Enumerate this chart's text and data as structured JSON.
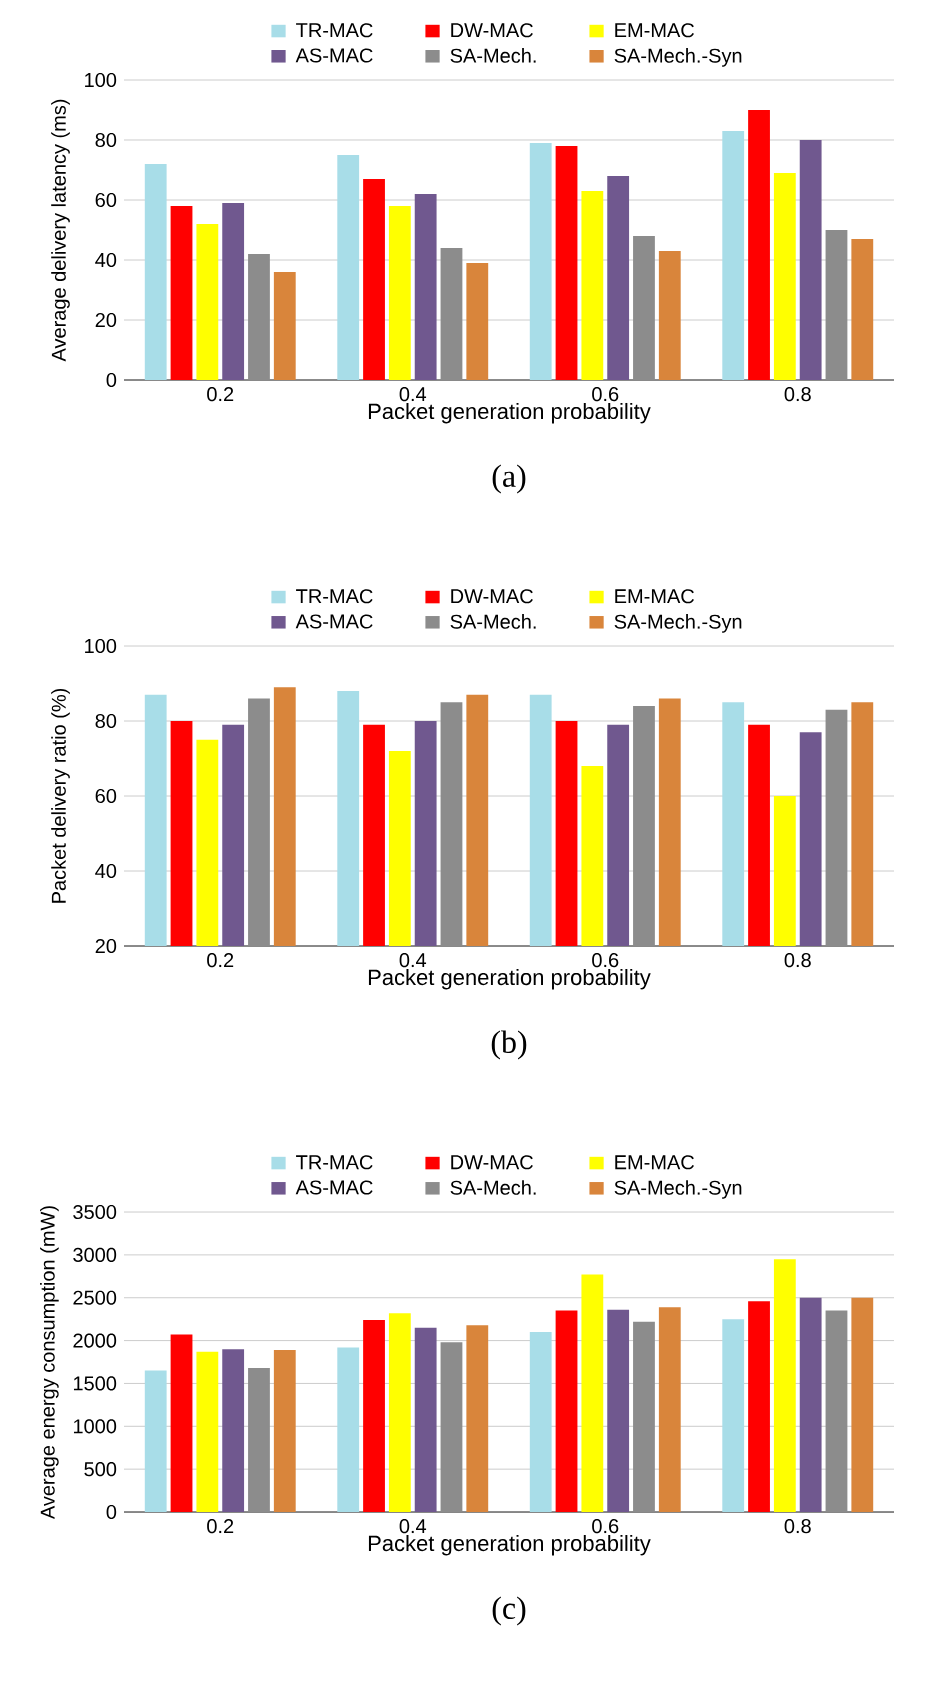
{
  "chart_data": [
    {
      "type": "bar",
      "ylabel": "Average delivery latency (ms)",
      "xlabel": "Packet generation probability",
      "categories": [
        "0.2",
        "0.4",
        "0.6",
        "0.8"
      ],
      "ylim": [
        0,
        100
      ],
      "yticks": [
        0,
        20,
        40,
        60,
        80,
        100
      ],
      "grid": "y",
      "legend": "top",
      "annotations": [
        "(a)"
      ],
      "series": [
        {
          "name": "TR-MAC",
          "color": "#a8dde8",
          "values": [
            72,
            75,
            79,
            83
          ]
        },
        {
          "name": "DW-MAC",
          "color": "#ff0000",
          "values": [
            58,
            67,
            78,
            90
          ]
        },
        {
          "name": "EM-MAC",
          "color": "#ffff00",
          "values": [
            52,
            58,
            63,
            69
          ]
        },
        {
          "name": "AS-MAC",
          "color": "#70588f",
          "values": [
            59,
            62,
            68,
            80
          ]
        },
        {
          "name": "SA-Mech.",
          "color": "#8c8c8c",
          "values": [
            42,
            44,
            48,
            50
          ]
        },
        {
          "name": "SA-Mech.-Syn",
          "color": "#d9853b",
          "values": [
            36,
            39,
            43,
            47
          ]
        }
      ]
    },
    {
      "type": "bar",
      "ylabel": "Packet delivery ratio (%)",
      "xlabel": "Packet generation probability",
      "categories": [
        "0.2",
        "0.4",
        "0.6",
        "0.8"
      ],
      "ylim": [
        20,
        100
      ],
      "yticks": [
        20,
        40,
        60,
        80,
        100
      ],
      "grid": "y",
      "legend": "top",
      "annotations": [
        "(b)"
      ],
      "series": [
        {
          "name": "TR-MAC",
          "color": "#a8dde8",
          "values": [
            87,
            88,
            87,
            85
          ]
        },
        {
          "name": "DW-MAC",
          "color": "#ff0000",
          "values": [
            80,
            79,
            80,
            79
          ]
        },
        {
          "name": "EM-MAC",
          "color": "#ffff00",
          "values": [
            75,
            72,
            68,
            60
          ]
        },
        {
          "name": "AS-MAC",
          "color": "#70588f",
          "values": [
            79,
            80,
            79,
            77
          ]
        },
        {
          "name": "SA-Mech.",
          "color": "#8c8c8c",
          "values": [
            86,
            85,
            84,
            83
          ]
        },
        {
          "name": "SA-Mech.-Syn",
          "color": "#d9853b",
          "values": [
            89,
            87,
            86,
            85
          ]
        }
      ]
    },
    {
      "type": "bar",
      "ylabel": "Average energy consumption (mW)",
      "xlabel": "Packet generation probability",
      "categories": [
        "0.2",
        "0.4",
        "0.6",
        "0.8"
      ],
      "ylim": [
        0,
        3500
      ],
      "yticks": [
        0,
        500,
        1000,
        1500,
        2000,
        2500,
        3000,
        3500
      ],
      "grid": "y",
      "legend": "top",
      "annotations": [
        "(c)"
      ],
      "series": [
        {
          "name": "TR-MAC",
          "color": "#a8dde8",
          "values": [
            1650,
            1920,
            2100,
            2250
          ]
        },
        {
          "name": "DW-MAC",
          "color": "#ff0000",
          "values": [
            2070,
            2240,
            2350,
            2460
          ]
        },
        {
          "name": "EM-MAC",
          "color": "#ffff00",
          "values": [
            1870,
            2320,
            2770,
            2950
          ]
        },
        {
          "name": "AS-MAC",
          "color": "#70588f",
          "values": [
            1900,
            2150,
            2360,
            2500
          ]
        },
        {
          "name": "SA-Mech.",
          "color": "#8c8c8c",
          "values": [
            1680,
            1980,
            2220,
            2350
          ]
        },
        {
          "name": "SA-Mech.-Syn",
          "color": "#d9853b",
          "values": [
            1890,
            2180,
            2390,
            2500
          ]
        }
      ]
    }
  ]
}
